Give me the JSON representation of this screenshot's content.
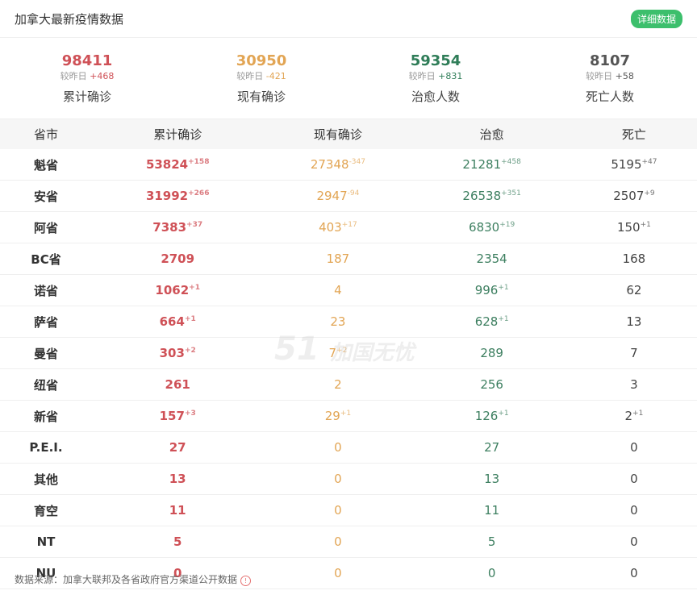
{
  "header": {
    "title": "加拿大最新疫情数据",
    "detail_button": "详细数据"
  },
  "summary": [
    {
      "value": "98411",
      "delta_label": "较昨日",
      "delta": "+468",
      "label": "累计确诊",
      "color": "#cf5157"
    },
    {
      "value": "30950",
      "delta_label": "较昨日",
      "delta": "-421",
      "label": "现有确诊",
      "color": "#e2a554"
    },
    {
      "value": "59354",
      "delta_label": "较昨日",
      "delta": "+831",
      "label": "治愈人数",
      "color": "#2f7d58"
    },
    {
      "value": "8107",
      "delta_label": "较昨日",
      "delta": "+58",
      "label": "死亡人数",
      "color": "#555555"
    }
  ],
  "table": {
    "headers": [
      "省市",
      "累计确诊",
      "现有确诊",
      "治愈",
      "死亡"
    ],
    "rows": [
      [
        "魁省",
        "53824",
        "+158",
        "27348",
        "-347",
        "21281",
        "+458",
        "5195",
        "+47"
      ],
      [
        "安省",
        "31992",
        "+266",
        "2947",
        "-94",
        "26538",
        "+351",
        "2507",
        "+9"
      ],
      [
        "阿省",
        "7383",
        "+37",
        "403",
        "+17",
        "6830",
        "+19",
        "150",
        "+1"
      ],
      [
        "BC省",
        "2709",
        "",
        "187",
        "",
        "2354",
        "",
        "168",
        ""
      ],
      [
        "诺省",
        "1062",
        "+1",
        "4",
        "",
        "996",
        "+1",
        "62",
        ""
      ],
      [
        "萨省",
        "664",
        "+1",
        "23",
        "",
        "628",
        "+1",
        "13",
        ""
      ],
      [
        "曼省",
        "303",
        "+2",
        "7",
        "+2",
        "289",
        "",
        "7",
        ""
      ],
      [
        "纽省",
        "261",
        "",
        "2",
        "",
        "256",
        "",
        "3",
        ""
      ],
      [
        "新省",
        "157",
        "+3",
        "29",
        "+1",
        "126",
        "+1",
        "2",
        "+1"
      ],
      [
        "P.E.I.",
        "27",
        "",
        "0",
        "",
        "27",
        "",
        "0",
        ""
      ],
      [
        "其他",
        "13",
        "",
        "0",
        "",
        "13",
        "",
        "0",
        ""
      ],
      [
        "育空",
        "11",
        "",
        "0",
        "",
        "11",
        "",
        "0",
        ""
      ],
      [
        "NT",
        "5",
        "",
        "0",
        "",
        "5",
        "",
        "0",
        ""
      ],
      [
        "NU",
        "0",
        "",
        "0",
        "",
        "0",
        "",
        "0",
        ""
      ]
    ]
  },
  "watermark": "51 加国无忧 CANADA",
  "footer": {
    "source": "数据来源：加拿大联邦及各省政府官方渠道公开数据",
    "info_icon": "info-icon"
  }
}
